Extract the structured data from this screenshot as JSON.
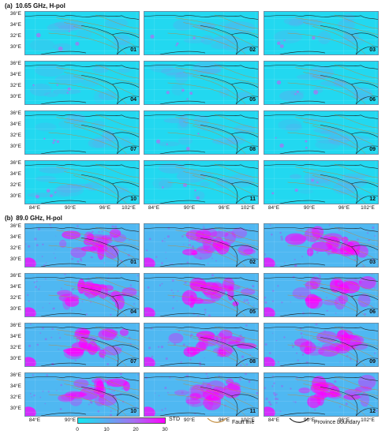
{
  "sections": [
    {
      "tag": "(a)",
      "title": "10.65 GHz, H-pol",
      "mode": "low"
    },
    {
      "tag": "(b)",
      "title": "89.0 GHz, H-pol",
      "mode": "high"
    }
  ],
  "months": [
    "01",
    "02",
    "03",
    "04",
    "05",
    "06",
    "07",
    "08",
    "09",
    "10",
    "11",
    "12"
  ],
  "lat_labels": [
    "36°E",
    "34°E",
    "32°E",
    "30°E"
  ],
  "lon_labels": [
    "84°E",
    "90°E",
    "96°E",
    "102°E"
  ],
  "colorbar": {
    "title": "STD",
    "ticks": [
      "0",
      "10",
      "20",
      "30"
    ],
    "range": [
      0,
      30
    ],
    "colors": [
      "#12e8f0",
      "#5fa8f2",
      "#a86ef2",
      "#ff00ff"
    ]
  },
  "legend": {
    "fault_label": "Fault line",
    "fault_color": "#c08a3a",
    "boundary_label": "Province boundary",
    "boundary_color": "#222222"
  }
}
